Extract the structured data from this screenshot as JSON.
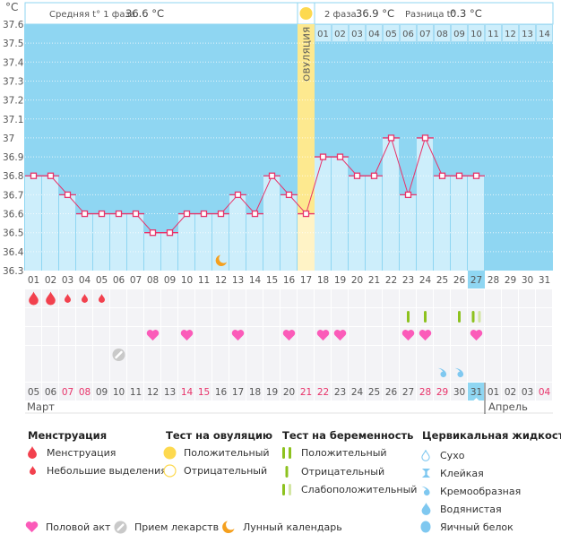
{
  "header": {
    "unit": "°C",
    "phase1_label": "Средняя t° 1 фаза",
    "phase1_value": "36.6 °C",
    "phase2_label": "2 фаза",
    "phase2_value": "36.9 °C",
    "diff_label": "Разница t°",
    "diff_value": "0.3 °C",
    "ovulation_label": "ОВУЛЯЦИЯ"
  },
  "colors": {
    "sky": "#8fd6f2",
    "bar": "#cdeefb",
    "line": "#e8336a",
    "ovulation": "#fde98f",
    "ovulation_light": "#fff3c6",
    "weekend": "#e8336a",
    "cell": "#f3f3f6",
    "blood": "#f2414e",
    "heart": "#fb5bb9",
    "pill": "#c9c9c9",
    "moon": "#f5a01e",
    "preg_dark": "#8dc21f",
    "preg_light": "#d3e6a3",
    "fluid": "#7fc8f0",
    "ovu_test": "#fdd94f"
  },
  "chart_data": {
    "type": "bar",
    "title": "",
    "xlabel": "",
    "ylabel": "°C",
    "ylim": [
      36.3,
      37.6
    ],
    "grid": true,
    "yticks": [
      "37.6",
      "37.5",
      "37.4",
      "37.3",
      "37.2",
      "37.1",
      "37",
      "36.9",
      "36.8",
      "36.7",
      "36.6",
      "36.5",
      "36.4",
      "36.3"
    ],
    "categories": [
      "01",
      "02",
      "03",
      "04",
      "05",
      "06",
      "07",
      "08",
      "09",
      "10",
      "11",
      "12",
      "13",
      "14",
      "15",
      "16",
      "17",
      "18",
      "19",
      "20",
      "21",
      "22",
      "23",
      "24",
      "25",
      "26",
      "27",
      "28",
      "29",
      "30",
      "31"
    ],
    "values": [
      36.8,
      36.8,
      36.7,
      36.6,
      36.6,
      36.6,
      36.6,
      36.5,
      36.5,
      36.6,
      36.6,
      36.6,
      36.7,
      36.6,
      36.8,
      36.7,
      36.6,
      36.9,
      36.9,
      36.8,
      36.8,
      37.0,
      36.7,
      37.0,
      36.8,
      36.8,
      36.8,
      null,
      null,
      null,
      null
    ],
    "current_day": 27,
    "ovulation_day": 17,
    "phase2_days": [
      "01",
      "02",
      "03",
      "04",
      "05",
      "06",
      "07",
      "08",
      "09",
      "10",
      "11",
      "12",
      "13",
      "14"
    ]
  },
  "symbols": {
    "menstruation": [
      {
        "day": 1,
        "type": "heavy"
      },
      {
        "day": 2,
        "type": "heavy"
      },
      {
        "day": 3,
        "type": "light"
      },
      {
        "day": 4,
        "type": "light"
      },
      {
        "day": 5,
        "type": "light"
      }
    ],
    "pregnancy_tests": [
      {
        "day": 23,
        "result": "negative"
      },
      {
        "day": 24,
        "result": "negative"
      },
      {
        "day": 26,
        "result": "negative"
      },
      {
        "day": 27,
        "result": "weak_positive"
      }
    ],
    "intercourse": [
      8,
      10,
      13,
      16,
      18,
      19,
      23,
      24,
      27
    ],
    "medication": [
      6
    ],
    "cervical_fluid": [
      {
        "day": 25,
        "type": "creamy"
      },
      {
        "day": 26,
        "type": "creamy"
      }
    ],
    "lunar": [
      12
    ],
    "ovulation_test": [
      {
        "day": 17,
        "result": "positive"
      }
    ]
  },
  "calendar": {
    "dates": [
      {
        "label": "05"
      },
      {
        "label": "06"
      },
      {
        "label": "07",
        "weekend": true
      },
      {
        "label": "08",
        "weekend": true
      },
      {
        "label": "09"
      },
      {
        "label": "10"
      },
      {
        "label": "11"
      },
      {
        "label": "12"
      },
      {
        "label": "13"
      },
      {
        "label": "14",
        "weekend": true
      },
      {
        "label": "15",
        "weekend": true
      },
      {
        "label": "16"
      },
      {
        "label": "17"
      },
      {
        "label": "18"
      },
      {
        "label": "19"
      },
      {
        "label": "20"
      },
      {
        "label": "21",
        "weekend": true
      },
      {
        "label": "22",
        "weekend": true
      },
      {
        "label": "23"
      },
      {
        "label": "24"
      },
      {
        "label": "25"
      },
      {
        "label": "26"
      },
      {
        "label": "27"
      },
      {
        "label": "28",
        "weekend": true
      },
      {
        "label": "29",
        "weekend": true
      },
      {
        "label": "30"
      },
      {
        "label": "31",
        "today": true
      },
      {
        "label": "01"
      },
      {
        "label": "02"
      },
      {
        "label": "03"
      },
      {
        "label": "04",
        "weekend": true
      }
    ],
    "months": [
      {
        "label": "Март",
        "start_day": 1
      },
      {
        "label": "Апрель",
        "start_day": 28
      }
    ]
  },
  "legend": {
    "menstruation": {
      "title": "Менструация",
      "items": [
        "Менструация",
        "Небольшие выделения"
      ]
    },
    "ovulation_test": {
      "title": "Тест на овуляцию",
      "items": [
        "Положительный",
        "Отрицательный"
      ]
    },
    "pregnancy_test": {
      "title": "Тест на беременность",
      "items": [
        "Положительный",
        "Отрицательный",
        "Слабоположительный"
      ]
    },
    "cervical_fluid": {
      "title": "Цервикальная жидкость",
      "items": [
        "Сухо",
        "Клейкая",
        "Кремообразная",
        "Водянистая",
        "Яичный белок"
      ]
    },
    "other": {
      "items": [
        "Половой акт",
        "Прием лекарств",
        "Лунный календарь"
      ]
    }
  }
}
